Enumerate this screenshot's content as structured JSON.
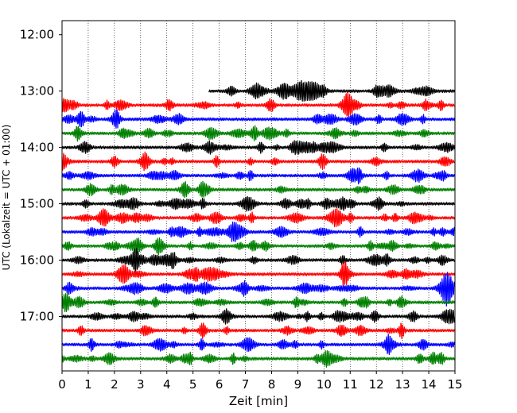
{
  "chart_data": {
    "type": "line",
    "title": "",
    "xlabel": "Zeit  [min]",
    "ylabel": "UTC (Lokalzeit = UTC + 01:00)",
    "xlim": [
      0,
      15
    ],
    "ylim": [
      "17:58",
      "11:45"
    ],
    "x_ticks": [
      "0",
      "1",
      "2",
      "3",
      "4",
      "5",
      "6",
      "7",
      "8",
      "9",
      "10",
      "11",
      "12",
      "13",
      "14",
      "15"
    ],
    "y_ticks": [
      "12:00",
      "13:00",
      "14:00",
      "15:00",
      "16:00",
      "17:00"
    ],
    "grid": "vertical dotted lines at each minute",
    "row_interval_minutes": 15,
    "series_colors": [
      "#000000",
      "#ff0000",
      "#0000ff",
      "#008000"
    ],
    "rows": [
      {
        "start": "13:00",
        "color": "#000000",
        "x_start": 5.6
      },
      {
        "start": "13:15",
        "color": "#ff0000"
      },
      {
        "start": "13:30",
        "color": "#0000ff"
      },
      {
        "start": "13:45",
        "color": "#008000"
      },
      {
        "start": "14:00",
        "color": "#000000"
      },
      {
        "start": "14:15",
        "color": "#ff0000"
      },
      {
        "start": "14:30",
        "color": "#0000ff"
      },
      {
        "start": "14:45",
        "color": "#008000"
      },
      {
        "start": "15:00",
        "color": "#000000"
      },
      {
        "start": "15:15",
        "color": "#ff0000"
      },
      {
        "start": "15:30",
        "color": "#0000ff"
      },
      {
        "start": "15:45",
        "color": "#008000"
      },
      {
        "start": "16:00",
        "color": "#000000"
      },
      {
        "start": "16:15",
        "color": "#ff0000"
      },
      {
        "start": "16:30",
        "color": "#0000ff"
      },
      {
        "start": "16:45",
        "color": "#008000"
      },
      {
        "start": "17:00",
        "color": "#000000"
      },
      {
        "start": "17:15",
        "color": "#ff0000"
      },
      {
        "start": "17:30",
        "color": "#0000ff"
      },
      {
        "start": "17:45",
        "color": "#008000"
      }
    ]
  }
}
